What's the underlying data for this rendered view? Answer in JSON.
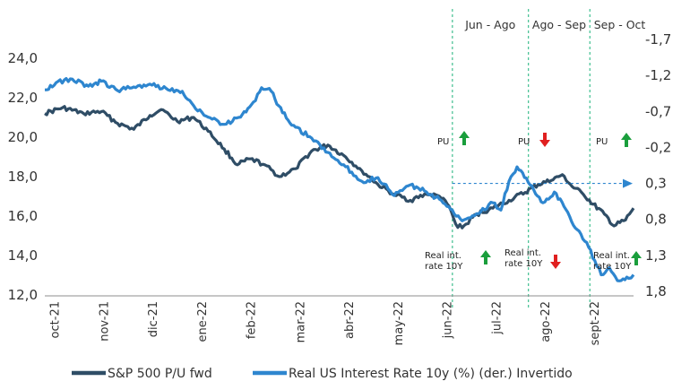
{
  "chart_data": {
    "type": "line",
    "x_range": [
      "2021-10-01",
      "2022-09-30"
    ],
    "x_tick_labels": [
      "oct-21",
      "nov-21",
      "dic-21",
      "ene-22",
      "feb-22",
      "mar-22",
      "abr-22",
      "may-22",
      "jun-22",
      "jul-22",
      "ago-22",
      "sept-22"
    ],
    "y_left": {
      "ticks": [
        "12,0",
        "14,0",
        "16,0",
        "18,0",
        "20,0",
        "22,0",
        "24,0"
      ],
      "min": 12,
      "max": 24
    },
    "y_right": {
      "ticks": [
        "-1,7",
        "-1,2",
        "-0,7",
        "-0,2",
        "0,3",
        "0,8",
        "1,3",
        "1,8"
      ],
      "min": -1.7,
      "max": 1.8,
      "inverted": true
    },
    "series": [
      {
        "name": "S&P 500 P/U fwd",
        "axis": "left",
        "color": "#2f4d66",
        "points": [
          [
            "2021-10-01",
            21.2
          ],
          [
            "2021-10-12",
            21.5
          ],
          [
            "2021-10-25",
            21.2
          ],
          [
            "2021-11-05",
            21.3
          ],
          [
            "2021-11-15",
            20.7
          ],
          [
            "2021-11-25",
            20.4
          ],
          [
            "2021-12-05",
            21.1
          ],
          [
            "2021-12-12",
            21.4
          ],
          [
            "2021-12-22",
            20.8
          ],
          [
            "2022-01-01",
            21.0
          ],
          [
            "2022-01-10",
            20.3
          ],
          [
            "2022-01-20",
            19.4
          ],
          [
            "2022-01-28",
            18.6
          ],
          [
            "2022-02-05",
            18.9
          ],
          [
            "2022-02-14",
            18.6
          ],
          [
            "2022-02-23",
            18.0
          ],
          [
            "2022-03-05",
            18.4
          ],
          [
            "2022-03-15",
            19.3
          ],
          [
            "2022-03-25",
            19.6
          ],
          [
            "2022-04-05",
            19.0
          ],
          [
            "2022-04-15",
            18.3
          ],
          [
            "2022-04-25",
            17.6
          ],
          [
            "2022-05-05",
            17.1
          ],
          [
            "2022-05-15",
            16.8
          ],
          [
            "2022-05-25",
            17.1
          ],
          [
            "2022-06-02",
            17.0
          ],
          [
            "2022-06-08",
            16.5
          ],
          [
            "2022-06-12",
            15.6
          ],
          [
            "2022-06-16",
            15.4
          ],
          [
            "2022-06-25",
            16.1
          ],
          [
            "2022-07-05",
            16.4
          ],
          [
            "2022-07-15",
            16.8
          ],
          [
            "2022-07-25",
            17.2
          ],
          [
            "2022-08-02",
            17.6
          ],
          [
            "2022-08-10",
            17.8
          ],
          [
            "2022-08-17",
            18.1
          ],
          [
            "2022-08-23",
            17.5
          ],
          [
            "2022-08-30",
            17.1
          ],
          [
            "2022-09-05",
            16.6
          ],
          [
            "2022-09-12",
            16.1
          ],
          [
            "2022-09-18",
            15.5
          ],
          [
            "2022-09-25",
            15.8
          ],
          [
            "2022-09-30",
            16.4
          ]
        ]
      },
      {
        "name": "Real US Interest Rate 10y (%) (der.) Invertido",
        "axis": "right",
        "color": "#2e86cf",
        "points": [
          [
            "2021-10-01",
            -1.0
          ],
          [
            "2021-10-08",
            -1.1
          ],
          [
            "2021-10-18",
            -1.15
          ],
          [
            "2021-10-28",
            -1.05
          ],
          [
            "2021-11-05",
            -1.12
          ],
          [
            "2021-11-15",
            -0.99
          ],
          [
            "2021-11-25",
            -1.04
          ],
          [
            "2021-12-05",
            -1.08
          ],
          [
            "2021-12-15",
            -1.02
          ],
          [
            "2021-12-25",
            -0.98
          ],
          [
            "2022-01-01",
            -0.78
          ],
          [
            "2022-01-10",
            -0.62
          ],
          [
            "2022-01-20",
            -0.52
          ],
          [
            "2022-01-30",
            -0.62
          ],
          [
            "2022-02-07",
            -0.83
          ],
          [
            "2022-02-12",
            -1.03
          ],
          [
            "2022-02-18",
            -0.98
          ],
          [
            "2022-02-25",
            -0.68
          ],
          [
            "2022-03-05",
            -0.48
          ],
          [
            "2022-03-15",
            -0.33
          ],
          [
            "2022-03-25",
            -0.13
          ],
          [
            "2022-04-05",
            0.07
          ],
          [
            "2022-04-15",
            0.27
          ],
          [
            "2022-04-25",
            0.22
          ],
          [
            "2022-05-05",
            0.47
          ],
          [
            "2022-05-15",
            0.32
          ],
          [
            "2022-05-25",
            0.42
          ],
          [
            "2022-06-02",
            0.52
          ],
          [
            "2022-06-10",
            0.67
          ],
          [
            "2022-06-16",
            0.82
          ],
          [
            "2022-06-25",
            0.72
          ],
          [
            "2022-07-05",
            0.57
          ],
          [
            "2022-07-10",
            0.67
          ],
          [
            "2022-07-15",
            0.27
          ],
          [
            "2022-07-20",
            0.07
          ],
          [
            "2022-07-28",
            0.32
          ],
          [
            "2022-08-05",
            0.57
          ],
          [
            "2022-08-12",
            0.42
          ],
          [
            "2022-08-18",
            0.62
          ],
          [
            "2022-08-25",
            0.92
          ],
          [
            "2022-09-01",
            1.12
          ],
          [
            "2022-09-06",
            1.37
          ],
          [
            "2022-09-10",
            1.57
          ],
          [
            "2022-09-15",
            1.47
          ],
          [
            "2022-09-20",
            1.65
          ],
          [
            "2022-09-27",
            1.62
          ],
          [
            "2022-09-30",
            1.57
          ]
        ]
      }
    ],
    "periods": [
      {
        "label": "Jun - Ago",
        "start": "2022-06-10",
        "end": "2022-07-27"
      },
      {
        "label": "Ago - Sep",
        "start": "2022-07-27",
        "end": "2022-09-03"
      },
      {
        "label": "Sep - Oct",
        "start": "2022-09-03",
        "end": "2022-10-01"
      }
    ],
    "reference_line": {
      "axis": "right",
      "value": 0.3
    },
    "annotations": {
      "pu_label": "PU",
      "rate_label_line1": "Real int.",
      "rate_label_line2": "rate 10Y",
      "pu_directions": [
        "up",
        "down",
        "up"
      ],
      "rate_directions": [
        "up",
        "down",
        "up"
      ],
      "up_color": "#1a9e3c",
      "down_color": "#e02020"
    },
    "legend": {
      "position": "bottom"
    }
  }
}
